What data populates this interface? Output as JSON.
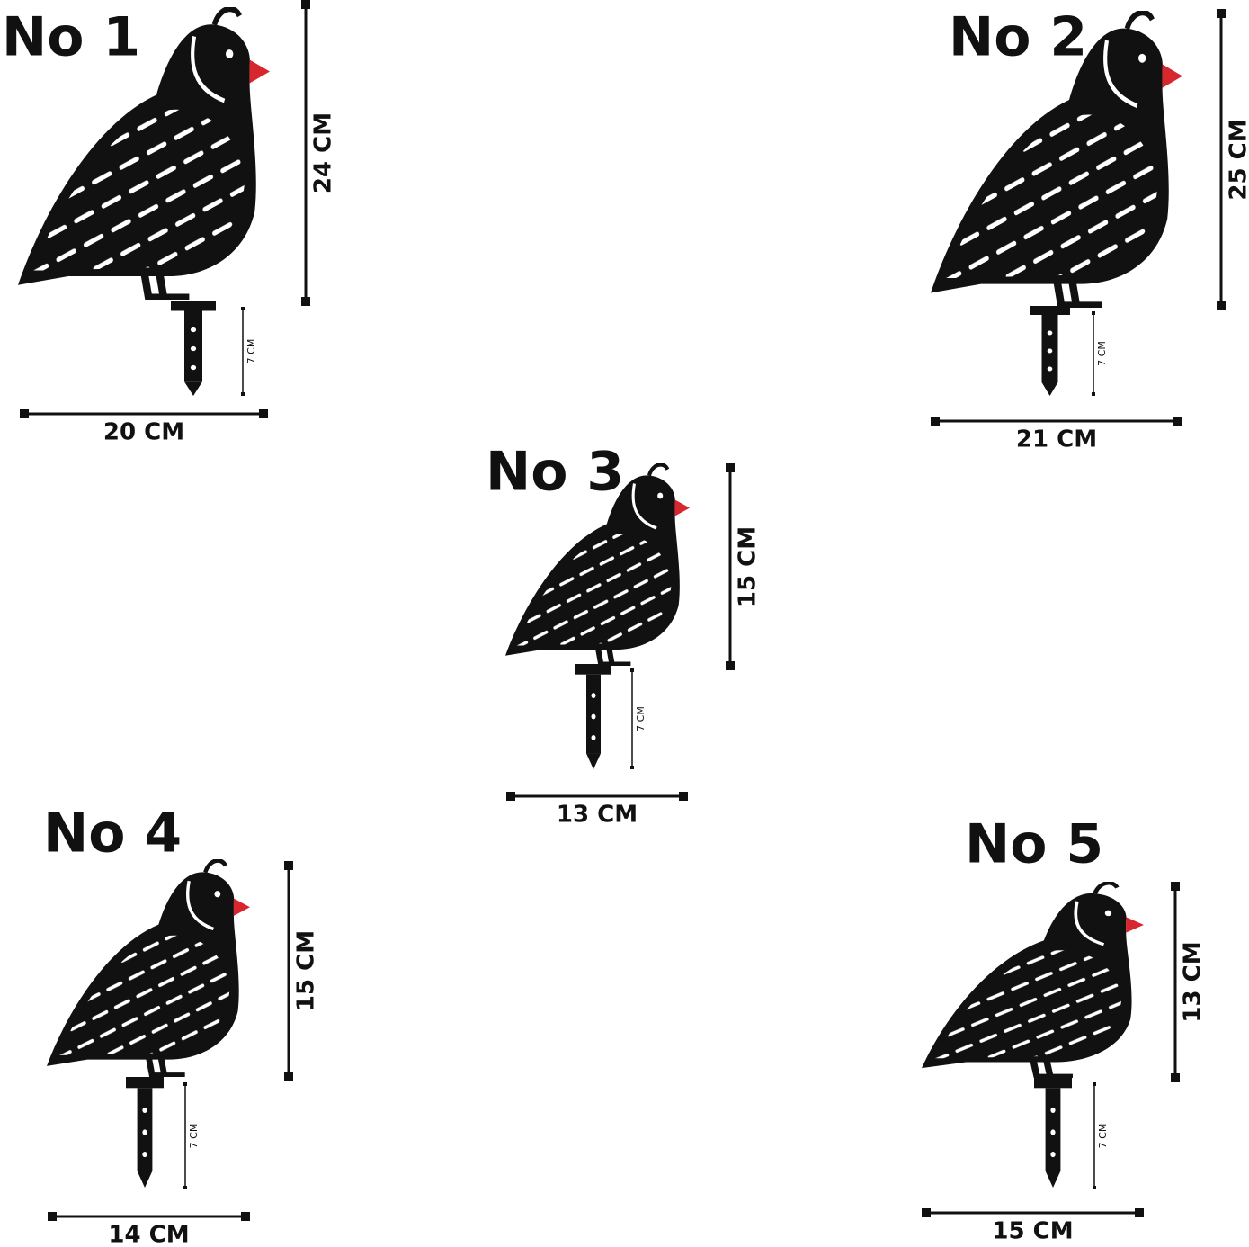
{
  "items": [
    {
      "label": "No 1",
      "height": "24 CM",
      "width": "20 CM",
      "stake": "7 CM"
    },
    {
      "label": "No 2",
      "height": "25 CM",
      "width": "21 CM",
      "stake": "7 CM"
    },
    {
      "label": "No 3",
      "height": "15 CM",
      "width": "13 CM",
      "stake": "7 CM"
    },
    {
      "label": "No 4",
      "height": "15 CM",
      "width": "14 CM",
      "stake": "7 CM"
    },
    {
      "label": "No 5",
      "height": "13 CM",
      "width": "15 CM",
      "stake": "7 CM"
    }
  ]
}
